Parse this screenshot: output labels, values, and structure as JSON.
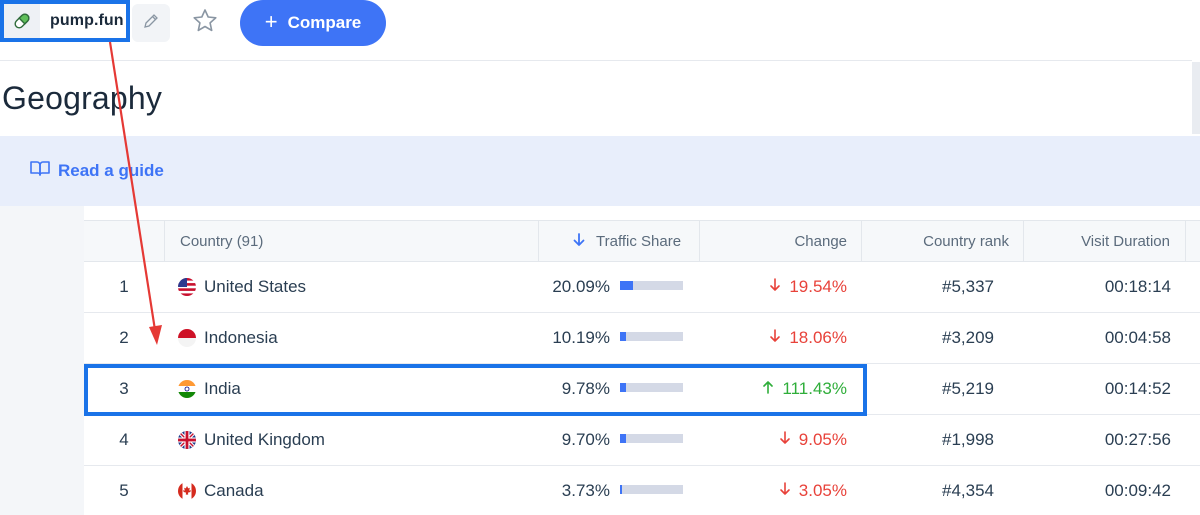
{
  "header": {
    "domain": "pump.fun",
    "compare_label": "Compare",
    "compare_icon": "plus-icon",
    "edit_icon": "pencil-icon",
    "favorite_icon": "star-icon"
  },
  "section": {
    "title": "Geography",
    "guide_label": "Read a guide",
    "guide_icon": "book-icon"
  },
  "table": {
    "columns": {
      "country": "Country (91)",
      "traffic_share": "Traffic Share",
      "change": "Change",
      "country_rank": "Country rank",
      "visit_duration": "Visit Duration"
    },
    "sort_icon": "arrow-down-icon",
    "rows": [
      {
        "index": "1",
        "country": "United States",
        "flag": "us-flag-icon",
        "share": "20.09%",
        "share_value": 20.09,
        "change": "19.54%",
        "direction": "down",
        "rank": "#5,337",
        "duration": "00:18:14"
      },
      {
        "index": "2",
        "country": "Indonesia",
        "flag": "indonesia-flag-icon",
        "share": "10.19%",
        "share_value": 10.19,
        "change": "18.06%",
        "direction": "down",
        "rank": "#3,209",
        "duration": "00:04:58"
      },
      {
        "index": "3",
        "country": "India",
        "flag": "india-flag-icon",
        "share": "9.78%",
        "share_value": 9.78,
        "change": "111.43%",
        "direction": "up",
        "rank": "#5,219",
        "duration": "00:14:52"
      },
      {
        "index": "4",
        "country": "United Kingdom",
        "flag": "uk-flag-icon",
        "share": "9.70%",
        "share_value": 9.7,
        "change": "9.05%",
        "direction": "down",
        "rank": "#1,998",
        "duration": "00:27:56"
      },
      {
        "index": "5",
        "country": "Canada",
        "flag": "canada-flag-icon",
        "share": "3.73%",
        "share_value": 3.73,
        "change": "3.05%",
        "direction": "down",
        "rank": "#4,354",
        "duration": "00:09:42"
      }
    ]
  },
  "colors": {
    "accent": "#3e74f6",
    "annotation_blue": "#1a73e8",
    "annotation_red": "#e53935",
    "negative": "#e8423a",
    "positive": "#2fae3a"
  }
}
